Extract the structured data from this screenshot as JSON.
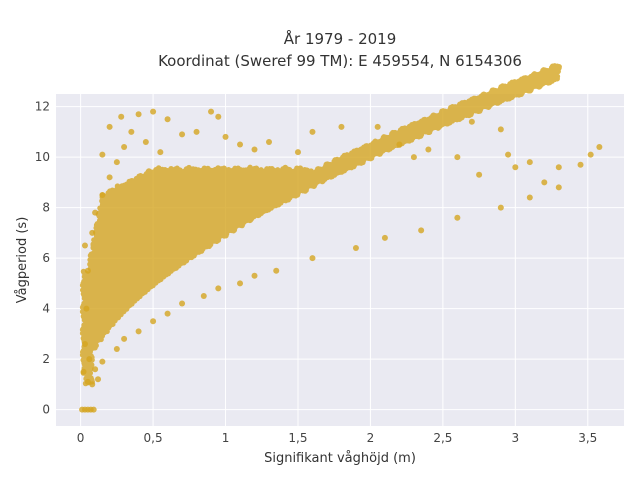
{
  "chart_data": {
    "type": "scatter",
    "title_line1": "År 1979 - 2019",
    "title_line2": "Koordinat (Sweref 99 TM): E 459554, N 6154306",
    "xlabel": "Signifikant våghöjd (m)",
    "ylabel": "Vågperiod (s)",
    "xlim": [
      -0.17,
      3.75
    ],
    "ylim": [
      -0.65,
      12.5
    ],
    "x_ticks": [
      0,
      0.5,
      1,
      1.5,
      2,
      2.5,
      3,
      3.5
    ],
    "x_tick_labels": [
      "0",
      "0,5",
      "1",
      "1,5",
      "2",
      "2,5",
      "3",
      "3,5"
    ],
    "y_ticks": [
      0,
      2,
      4,
      6,
      8,
      10,
      12
    ],
    "y_tick_labels": [
      "0",
      "2",
      "4",
      "6",
      "8",
      "10",
      "12"
    ],
    "grid": true,
    "marker_color": "#D4A520",
    "background_color": "#EAEAF2",
    "series": [
      {
        "points": [
          [
            0.01,
            0
          ],
          [
            0.03,
            0
          ],
          [
            0.05,
            0
          ],
          [
            0.07,
            0
          ],
          [
            0.09,
            0
          ],
          [
            0.02,
            1.5
          ],
          [
            0.05,
            1.1
          ],
          [
            0.08,
            1.0
          ],
          [
            0.12,
            1.2
          ],
          [
            0.1,
            1.6
          ],
          [
            0.06,
            2.0
          ],
          [
            0.03,
            2.6
          ],
          [
            0.04,
            4.0
          ],
          [
            0.05,
            5.5
          ],
          [
            0.03,
            6.5
          ],
          [
            0.08,
            7.0
          ],
          [
            0.1,
            7.8
          ],
          [
            0.15,
            8.5
          ],
          [
            0.2,
            9.2
          ],
          [
            0.25,
            9.8
          ],
          [
            0.3,
            10.4
          ],
          [
            0.35,
            11.0
          ],
          [
            0.28,
            11.6
          ],
          [
            0.4,
            11.7
          ],
          [
            0.5,
            11.8
          ],
          [
            0.6,
            11.5
          ],
          [
            0.9,
            11.8
          ],
          [
            0.95,
            11.6
          ],
          [
            0.2,
            11.2
          ],
          [
            0.15,
            10.1
          ],
          [
            0.45,
            10.6
          ],
          [
            0.55,
            10.2
          ],
          [
            0.7,
            10.9
          ],
          [
            0.8,
            11.0
          ],
          [
            1.0,
            10.8
          ],
          [
            1.1,
            10.5
          ],
          [
            1.2,
            10.3
          ],
          [
            1.3,
            10.6
          ],
          [
            1.5,
            10.2
          ],
          [
            1.6,
            11.0
          ],
          [
            1.8,
            11.2
          ],
          [
            2.05,
            11.2
          ],
          [
            2.2,
            10.5
          ],
          [
            2.3,
            10.0
          ],
          [
            2.4,
            10.3
          ],
          [
            2.6,
            10.0
          ],
          [
            2.7,
            11.4
          ],
          [
            2.9,
            11.1
          ],
          [
            2.95,
            10.1
          ],
          [
            2.75,
            9.3
          ],
          [
            3.0,
            9.6
          ],
          [
            3.1,
            9.8
          ],
          [
            3.2,
            9.0
          ],
          [
            3.3,
            9.6
          ],
          [
            3.45,
            9.7
          ],
          [
            3.52,
            10.1
          ],
          [
            3.58,
            10.4
          ],
          [
            3.3,
            8.8
          ],
          [
            3.1,
            8.4
          ],
          [
            2.9,
            8.0
          ],
          [
            2.6,
            7.6
          ],
          [
            2.35,
            7.1
          ],
          [
            2.1,
            6.8
          ],
          [
            1.9,
            6.4
          ],
          [
            1.6,
            6.0
          ],
          [
            1.35,
            5.5
          ],
          [
            1.1,
            5.0
          ],
          [
            0.85,
            4.5
          ],
          [
            0.6,
            3.8
          ],
          [
            0.4,
            3.1
          ],
          [
            0.25,
            2.4
          ],
          [
            0.15,
            1.9
          ],
          [
            0.3,
            2.8
          ],
          [
            0.5,
            3.5
          ],
          [
            0.7,
            4.2
          ],
          [
            0.95,
            4.8
          ],
          [
            1.2,
            5.3
          ]
        ]
      }
    ]
  }
}
